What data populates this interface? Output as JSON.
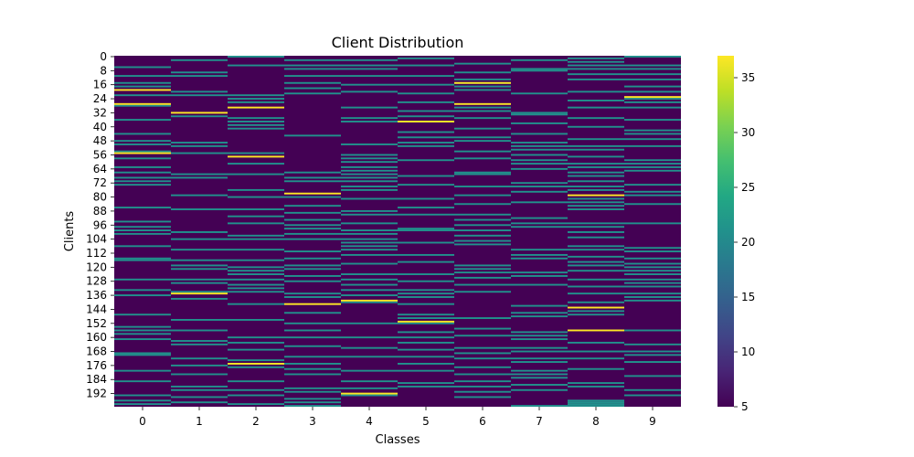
{
  "chart_data": {
    "type": "heatmap",
    "title": "Client Distribution",
    "xlabel": "Classes",
    "ylabel": "Clients",
    "x_categories": [
      "0",
      "1",
      "2",
      "3",
      "4",
      "5",
      "6",
      "7",
      "8",
      "9"
    ],
    "n_clients": 200,
    "y_tick_labels": [
      "0",
      "8",
      "16",
      "24",
      "32",
      "40",
      "48",
      "56",
      "64",
      "72",
      "80",
      "88",
      "96",
      "104",
      "112",
      "120",
      "128",
      "136",
      "144",
      "152",
      "160",
      "168",
      "176",
      "184",
      "192"
    ],
    "colorbar": {
      "min": 5,
      "max": 37,
      "ticks": [
        "5",
        "10",
        "15",
        "20",
        "25",
        "30",
        "35"
      ],
      "colormap": "viridis"
    },
    "background_value": 5,
    "mid_value": 21,
    "high_value": 37,
    "columns": [
      {
        "class": "0",
        "mid_rows": [
          6,
          11,
          15,
          17,
          22,
          28,
          36,
          44,
          48,
          50,
          54,
          58,
          63,
          66,
          69,
          71,
          73,
          86,
          94,
          97,
          99,
          101,
          108,
          115,
          116,
          127,
          133,
          136,
          147,
          154,
          156,
          158,
          161,
          169,
          170,
          179,
          185,
          193,
          196,
          198
        ],
        "high_rows": [
          19,
          27,
          55
        ]
      },
      {
        "class": "1",
        "mid_rows": [
          2,
          9,
          11,
          20,
          22,
          34,
          49,
          51,
          55,
          67,
          69,
          79,
          87,
          100,
          104,
          110,
          116,
          119,
          121,
          127,
          129,
          134,
          138,
          150,
          156,
          162,
          164,
          172,
          176,
          181,
          188,
          190,
          194,
          197
        ],
        "high_rows": [
          32,
          135
        ]
      },
      {
        "class": "2",
        "mid_rows": [
          0,
          5,
          22,
          24,
          26,
          35,
          37,
          39,
          41,
          55,
          61,
          67,
          76,
          80,
          87,
          91,
          95,
          102,
          104,
          110,
          116,
          120,
          122,
          124,
          127,
          130,
          132,
          134,
          141,
          150,
          160,
          163,
          167,
          173,
          177,
          185,
          190,
          193,
          198
        ],
        "high_rows": [
          29,
          57,
          175
        ]
      },
      {
        "class": "3",
        "mid_rows": [
          2,
          5,
          7,
          11,
          15,
          18,
          21,
          45,
          66,
          69,
          71,
          80,
          85,
          89,
          93,
          96,
          98,
          101,
          104,
          111,
          115,
          119,
          121,
          125,
          128,
          135,
          137,
          146,
          152,
          156,
          160,
          165,
          171,
          175,
          178,
          181,
          189,
          191,
          195,
          197,
          199
        ],
        "high_rows": [
          78,
          141
        ]
      },
      {
        "class": "4",
        "mid_rows": [
          2,
          5,
          7,
          11,
          16,
          20,
          29,
          35,
          37,
          50,
          56,
          58,
          60,
          63,
          65,
          67,
          69,
          71,
          74,
          76,
          81,
          88,
          90,
          95,
          99,
          101,
          104,
          106,
          108,
          110,
          113,
          118,
          124,
          127,
          130,
          133,
          136,
          140,
          152,
          160,
          166,
          171,
          179,
          185,
          189,
          193
        ],
        "high_rows": [
          139,
          192
        ]
      },
      {
        "class": "5",
        "mid_rows": [
          1,
          5,
          11,
          16,
          21,
          26,
          31,
          34,
          37,
          43,
          46,
          49,
          51,
          59,
          68,
          73,
          81,
          86,
          90,
          98,
          99,
          106,
          113,
          117,
          124,
          128,
          133,
          135,
          137,
          141,
          147,
          149,
          152,
          157,
          160,
          163,
          167,
          171,
          175,
          179,
          186,
          188
        ],
        "high_rows": [
          37,
          151
        ]
      },
      {
        "class": "6",
        "mid_rows": [
          4,
          9,
          13,
          15,
          17,
          19,
          29,
          31,
          35,
          41,
          46,
          48,
          54,
          58,
          66,
          67,
          74,
          79,
          84,
          90,
          93,
          96,
          99,
          102,
          105,
          107,
          119,
          121,
          123,
          126,
          130,
          134,
          149,
          155,
          159,
          166,
          169,
          172,
          177,
          181,
          185,
          188,
          191,
          194
        ],
        "high_rows": [
          15,
          27
        ]
      },
      {
        "class": "7",
        "mid_rows": [
          2,
          7,
          8,
          21,
          32,
          33,
          38,
          44,
          49,
          51,
          53,
          56,
          59,
          61,
          64,
          72,
          74,
          77,
          83,
          92,
          95,
          97,
          110,
          113,
          115,
          123,
          125,
          130,
          142,
          146,
          148,
          157,
          159,
          161,
          166,
          168,
          172,
          174,
          179,
          181,
          183,
          187,
          190,
          199
        ],
        "high_rows": []
      },
      {
        "class": "8",
        "mid_rows": [
          1,
          3,
          5,
          7,
          10,
          13,
          20,
          25,
          29,
          35,
          40,
          47,
          51,
          53,
          57,
          61,
          63,
          66,
          68,
          71,
          74,
          76,
          81,
          83,
          85,
          87,
          95,
          97,
          100,
          103,
          108,
          110,
          114,
          117,
          119,
          122,
          127,
          131,
          135,
          140,
          145,
          147,
          163,
          168,
          172,
          178,
          186,
          188,
          196,
          197,
          198,
          199
        ],
        "high_rows": [
          79,
          143,
          156
        ]
      },
      {
        "class": "9",
        "mid_rows": [
          0,
          5,
          7,
          10,
          13,
          17,
          20,
          24,
          26,
          29,
          36,
          42,
          44,
          47,
          51,
          59,
          61,
          63,
          65,
          73,
          77,
          79,
          84,
          95,
          109,
          111,
          115,
          118,
          120,
          122,
          124,
          127,
          129,
          131,
          135,
          137,
          139,
          156,
          164,
          168,
          170,
          174,
          182,
          190,
          193
        ],
        "high_rows": [
          23
        ]
      }
    ]
  }
}
